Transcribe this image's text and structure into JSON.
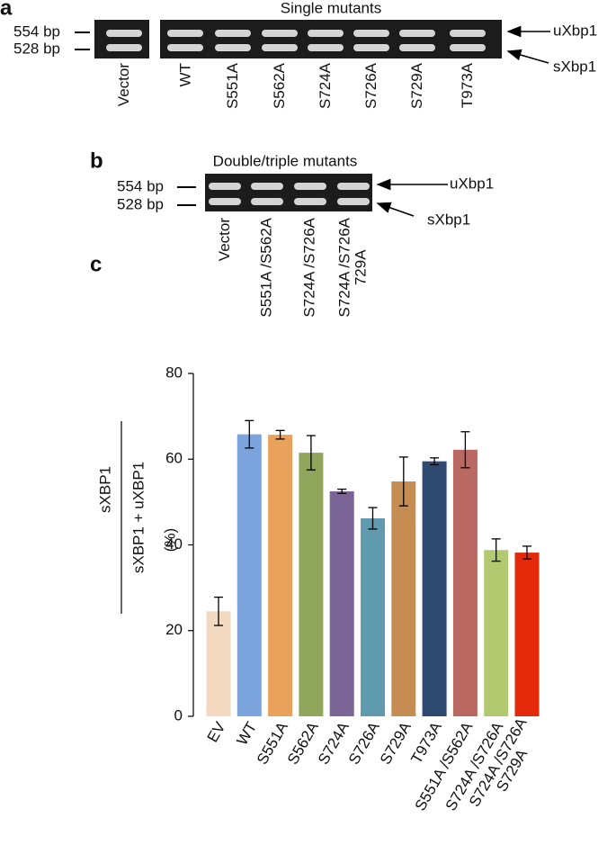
{
  "panel_a": {
    "letter": "a",
    "title": "Single mutants",
    "size_markers": [
      "554 bp",
      "528 bp"
    ],
    "bands": [
      "uXbp1",
      "sXbp1"
    ],
    "lanes": [
      "Vector",
      "WT",
      "S551A",
      "S562A",
      "S724A",
      "S726A",
      "S729A",
      "T973A"
    ]
  },
  "panel_b": {
    "letter": "b",
    "title": "Double/triple mutants",
    "size_markers": [
      "554 bp",
      "528 bp"
    ],
    "bands": [
      "uXbp1",
      "sXbp1"
    ],
    "lanes": [
      "Vector",
      "S551A /S562A",
      "S724A /S726A",
      "S724A /S726A\n729A"
    ]
  },
  "chart_data": {
    "type": "bar",
    "panel_letter": "c",
    "ylabel": {
      "numerator": "sXBP1",
      "denominator": "sXBP1 + uXBP1",
      "unit": "(%)"
    },
    "categories": [
      "EV",
      "WT",
      "S551A",
      "S562A",
      "S724A",
      "S726A",
      "S729A",
      "T973A",
      "S551A /S562A",
      "S724A /S726A",
      "S724A /S726A\nS729A"
    ],
    "values": [
      24.5,
      65.8,
      65.7,
      61.5,
      52.5,
      46.2,
      54.8,
      59.5,
      62.2,
      38.8,
      38.2
    ],
    "errors": [
      3.3,
      3.2,
      1.0,
      4.0,
      0.5,
      2.5,
      5.7,
      0.8,
      4.2,
      2.6,
      1.5
    ],
    "colors": [
      "#f2d9bf",
      "#7ba4dd",
      "#e8a25c",
      "#8fa65c",
      "#7a6596",
      "#5f9aae",
      "#c58d52",
      "#2f4a70",
      "#b96862",
      "#b3c96f",
      "#e32a0a"
    ],
    "ylim": [
      0,
      80
    ],
    "yticks": [
      0,
      20,
      40,
      60,
      80
    ],
    "grid": false
  }
}
